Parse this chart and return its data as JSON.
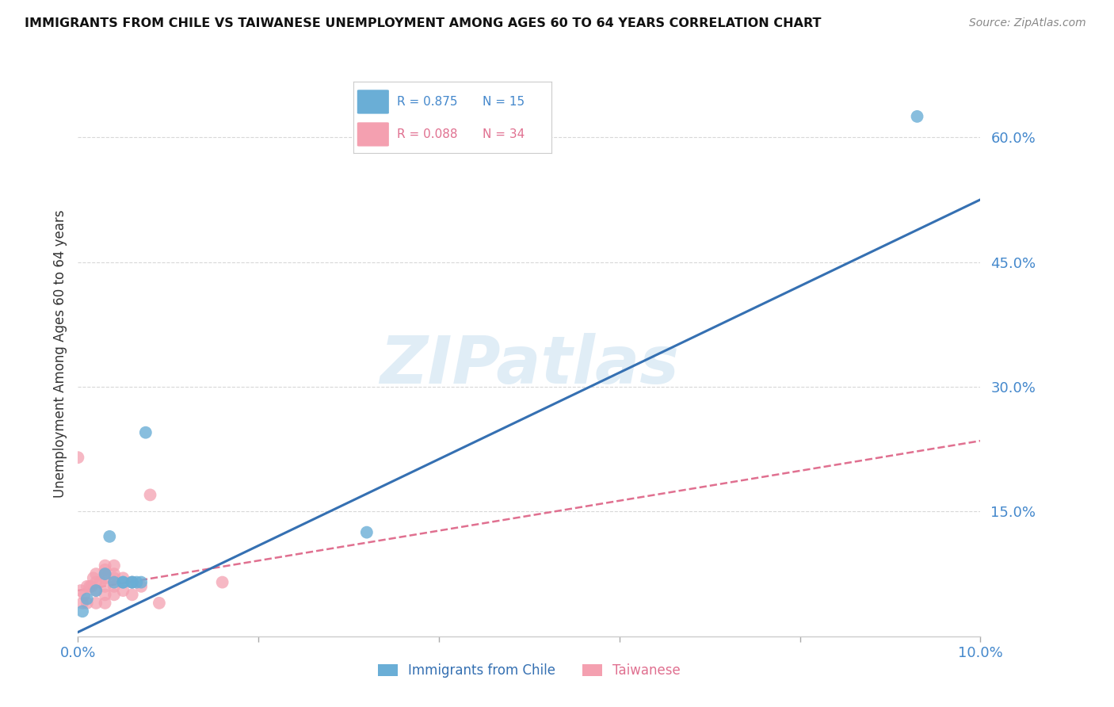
{
  "title": "IMMIGRANTS FROM CHILE VS TAIWANESE UNEMPLOYMENT AMONG AGES 60 TO 64 YEARS CORRELATION CHART",
  "source": "Source: ZipAtlas.com",
  "ylabel": "Unemployment Among Ages 60 to 64 years",
  "xlim": [
    0.0,
    0.1
  ],
  "ylim": [
    0.0,
    0.68
  ],
  "yticks": [
    0.15,
    0.3,
    0.45,
    0.6
  ],
  "ytick_labels": [
    "15.0%",
    "30.0%",
    "45.0%",
    "60.0%"
  ],
  "xticks": [
    0.0,
    0.02,
    0.04,
    0.06,
    0.08,
    0.1
  ],
  "xtick_labels": [
    "0.0%",
    "",
    "",
    "",
    "",
    "10.0%"
  ],
  "blue_scatter_x": [
    0.0005,
    0.001,
    0.002,
    0.003,
    0.0035,
    0.004,
    0.005,
    0.005,
    0.006,
    0.006,
    0.0065,
    0.007,
    0.0075,
    0.032,
    0.093
  ],
  "blue_scatter_y": [
    0.03,
    0.045,
    0.055,
    0.075,
    0.12,
    0.065,
    0.065,
    0.065,
    0.065,
    0.065,
    0.065,
    0.065,
    0.245,
    0.125,
    0.625
  ],
  "pink_scatter_x": [
    0.0,
    0.0003,
    0.0005,
    0.0007,
    0.001,
    0.001,
    0.0013,
    0.0015,
    0.0017,
    0.002,
    0.002,
    0.002,
    0.002,
    0.0025,
    0.003,
    0.003,
    0.003,
    0.003,
    0.003,
    0.003,
    0.003,
    0.004,
    0.004,
    0.004,
    0.004,
    0.004,
    0.005,
    0.005,
    0.006,
    0.006,
    0.007,
    0.008,
    0.009,
    0.016
  ],
  "pink_scatter_y": [
    0.215,
    0.055,
    0.04,
    0.05,
    0.04,
    0.06,
    0.06,
    0.06,
    0.07,
    0.04,
    0.055,
    0.065,
    0.075,
    0.065,
    0.04,
    0.05,
    0.06,
    0.07,
    0.075,
    0.08,
    0.085,
    0.05,
    0.06,
    0.07,
    0.075,
    0.085,
    0.055,
    0.07,
    0.05,
    0.065,
    0.06,
    0.17,
    0.04,
    0.065
  ],
  "blue_R": 0.875,
  "blue_N": 15,
  "pink_R": 0.088,
  "pink_N": 34,
  "blue_color": "#6aaed6",
  "pink_color": "#f4a0b0",
  "blue_line_color": "#3570b2",
  "pink_line_color": "#e07090",
  "blue_line_slope": 5.2,
  "blue_line_intercept": 0.005,
  "pink_line_slope": 1.8,
  "pink_line_intercept": 0.055,
  "watermark_text": "ZIPatlas",
  "legend_label_blue": "Immigrants from Chile",
  "legend_label_pink": "Taiwanese",
  "background_color": "#ffffff",
  "grid_color": "#d8d8d8"
}
